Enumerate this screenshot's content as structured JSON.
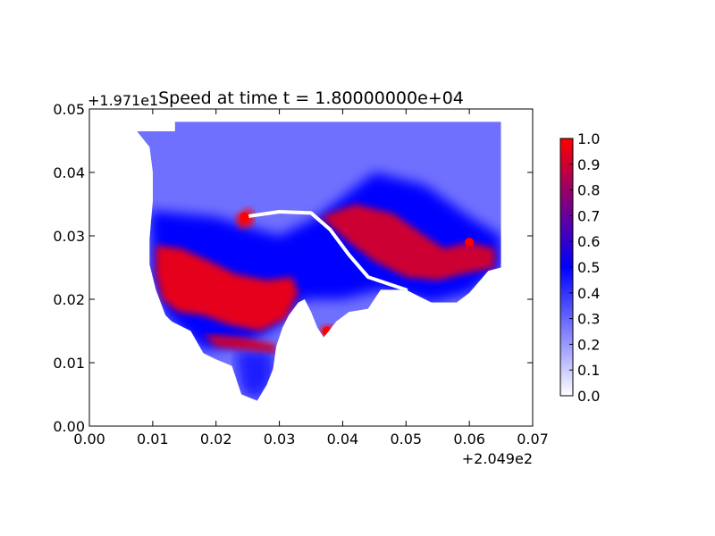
{
  "chart_data": {
    "type": "heatmap",
    "title": "Speed at time t = 1.80000000e+04",
    "xlabel": "",
    "ylabel": "",
    "x_offset_label": "+2.049e2",
    "y_offset_label": "+1.971e1",
    "xlim": [
      0.0,
      0.07
    ],
    "ylim": [
      0.0,
      0.05
    ],
    "x_ticks": [
      "0.00",
      "0.01",
      "0.02",
      "0.03",
      "0.04",
      "0.05",
      "0.06",
      "0.07"
    ],
    "y_ticks": [
      "0.00",
      "0.01",
      "0.02",
      "0.03",
      "0.04",
      "0.05"
    ],
    "grid": false,
    "colorbar": {
      "label": "",
      "range": [
        0.0,
        1.0
      ],
      "ticks": [
        "0.0",
        "0.1",
        "0.2",
        "0.3",
        "0.4",
        "0.5",
        "0.6",
        "0.7",
        "0.8",
        "0.9",
        "1.0"
      ],
      "colormap": [
        "#ffffff",
        "#0000ff",
        "#ff0000"
      ]
    },
    "domain_outline": [
      [
        0.0075,
        0.0465
      ],
      [
        0.0135,
        0.0465
      ],
      [
        0.0135,
        0.048
      ],
      [
        0.065,
        0.048
      ],
      [
        0.065,
        0.025
      ],
      [
        0.063,
        0.0245
      ],
      [
        0.06,
        0.021
      ],
      [
        0.058,
        0.0195
      ],
      [
        0.054,
        0.0195
      ],
      [
        0.05,
        0.0215
      ],
      [
        0.046,
        0.0215
      ],
      [
        0.044,
        0.0185
      ],
      [
        0.041,
        0.018
      ],
      [
        0.039,
        0.0165
      ],
      [
        0.037,
        0.014
      ],
      [
        0.036,
        0.0155
      ],
      [
        0.035,
        0.018
      ],
      [
        0.034,
        0.02
      ],
      [
        0.033,
        0.0195
      ],
      [
        0.0315,
        0.0175
      ],
      [
        0.0305,
        0.0155
      ],
      [
        0.0295,
        0.0125
      ],
      [
        0.029,
        0.009
      ],
      [
        0.028,
        0.0065
      ],
      [
        0.0265,
        0.004
      ],
      [
        0.024,
        0.005
      ],
      [
        0.0225,
        0.0095
      ],
      [
        0.02,
        0.0105
      ],
      [
        0.018,
        0.0115
      ],
      [
        0.016,
        0.015
      ],
      [
        0.013,
        0.0165
      ],
      [
        0.012,
        0.0175
      ],
      [
        0.0105,
        0.0215
      ],
      [
        0.0095,
        0.0255
      ],
      [
        0.0095,
        0.0295
      ],
      [
        0.01,
        0.0355
      ],
      [
        0.01,
        0.04
      ],
      [
        0.0095,
        0.044
      ]
    ],
    "high_speed_regions": [
      {
        "value": 0.95,
        "polygon": [
          [
            0.0105,
            0.0285
          ],
          [
            0.0145,
            0.028
          ],
          [
            0.019,
            0.026
          ],
          [
            0.023,
            0.024
          ],
          [
            0.028,
            0.023
          ],
          [
            0.032,
            0.0235
          ],
          [
            0.033,
            0.021
          ],
          [
            0.031,
            0.017
          ],
          [
            0.027,
            0.015
          ],
          [
            0.022,
            0.016
          ],
          [
            0.018,
            0.0175
          ],
          [
            0.014,
            0.018
          ],
          [
            0.0115,
            0.02
          ],
          [
            0.0105,
            0.024
          ]
        ]
      },
      {
        "value": 0.9,
        "polygon": [
          [
            0.0365,
            0.033
          ],
          [
            0.042,
            0.035
          ],
          [
            0.048,
            0.0335
          ],
          [
            0.053,
            0.03
          ],
          [
            0.056,
            0.028
          ],
          [
            0.06,
            0.029
          ],
          [
            0.064,
            0.028
          ],
          [
            0.064,
            0.025
          ],
          [
            0.059,
            0.024
          ],
          [
            0.055,
            0.023
          ],
          [
            0.05,
            0.0235
          ],
          [
            0.045,
            0.026
          ],
          [
            0.041,
            0.029
          ]
        ]
      },
      {
        "value": 0.9,
        "polygon": [
          [
            0.018,
            0.0145
          ],
          [
            0.024,
            0.014
          ],
          [
            0.029,
            0.013
          ],
          [
            0.03,
            0.0115
          ],
          [
            0.025,
            0.012
          ],
          [
            0.02,
            0.0125
          ]
        ]
      },
      {
        "value": 1.0,
        "polygon": [
          [
            0.023,
            0.033
          ],
          [
            0.0255,
            0.0345
          ],
          [
            0.026,
            0.032
          ],
          [
            0.024,
            0.031
          ]
        ]
      },
      {
        "value": 1.0,
        "polygon": [
          [
            0.0365,
            0.0155
          ],
          [
            0.0385,
            0.016
          ],
          [
            0.0385,
            0.014
          ],
          [
            0.0368,
            0.014
          ]
        ]
      }
    ],
    "medium_speed_regions": [
      {
        "value": 0.5,
        "polygon": [
          [
            0.0095,
            0.034
          ],
          [
            0.02,
            0.033
          ],
          [
            0.03,
            0.03
          ],
          [
            0.036,
            0.033
          ],
          [
            0.045,
            0.04
          ],
          [
            0.053,
            0.038
          ],
          [
            0.06,
            0.033
          ],
          [
            0.065,
            0.03
          ],
          [
            0.065,
            0.025
          ],
          [
            0.06,
            0.021
          ],
          [
            0.054,
            0.0195
          ],
          [
            0.046,
            0.0215
          ],
          [
            0.04,
            0.02
          ],
          [
            0.034,
            0.02
          ],
          [
            0.03,
            0.016
          ],
          [
            0.025,
            0.013
          ],
          [
            0.018,
            0.012
          ],
          [
            0.012,
            0.0175
          ],
          [
            0.01,
            0.023
          ]
        ]
      },
      {
        "value": 0.45,
        "polygon": [
          [
            0.023,
            0.012
          ],
          [
            0.029,
            0.012
          ],
          [
            0.029,
            0.007
          ],
          [
            0.0265,
            0.004
          ],
          [
            0.024,
            0.0055
          ]
        ]
      }
    ],
    "white_channel": [
      [
        0.0245,
        0.033
      ],
      [
        0.03,
        0.0338
      ],
      [
        0.035,
        0.0336
      ],
      [
        0.038,
        0.031
      ],
      [
        0.041,
        0.027
      ],
      [
        0.044,
        0.0235
      ],
      [
        0.05,
        0.0215
      ]
    ],
    "notable_points": [
      {
        "x": 0.0245,
        "y": 0.033,
        "speed": 1.0
      },
      {
        "x": 0.0375,
        "y": 0.015,
        "speed": 1.0
      },
      {
        "x": 0.06,
        "y": 0.029,
        "speed": 1.0
      }
    ]
  }
}
